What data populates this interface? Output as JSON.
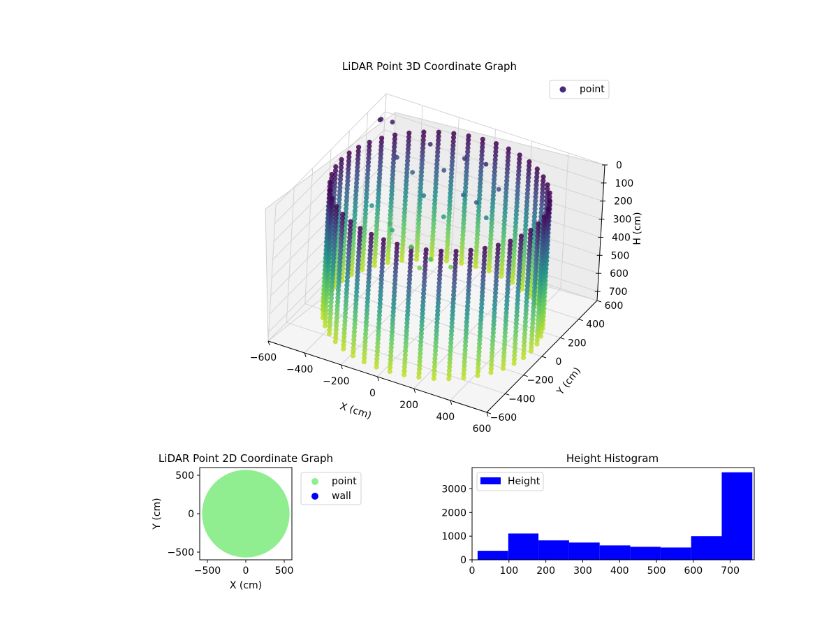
{
  "figure": {
    "bg_color": "#ffffff"
  },
  "chart_data": [
    {
      "id": "scatter3d",
      "type": "scatter",
      "projection": "3d",
      "title": "LiDAR Point 3D Coordinate Graph",
      "xlabel": "X (cm)",
      "ylabel": "Y (cm)",
      "zlabel": "H (cm)",
      "xlim": [
        -600,
        600
      ],
      "ylim": [
        -600,
        600
      ],
      "zlim": [
        0,
        750
      ],
      "z_inverted": true,
      "x_ticks": [
        -600,
        -400,
        -200,
        0,
        200,
        400,
        600
      ],
      "y_ticks": [
        -600,
        -400,
        -200,
        0,
        200,
        400,
        600
      ],
      "z_ticks": [
        0,
        100,
        200,
        300,
        400,
        500,
        600,
        700
      ],
      "colormap": "viridis",
      "series": [
        {
          "name": "point",
          "color": "#472c7a",
          "description_shape": "cylindrical wall of points",
          "wall_radius": 540,
          "wall_count": 46,
          "height_range": [
            30,
            740
          ]
        }
      ],
      "legend": {
        "labels": [
          "point"
        ],
        "position": "top-right"
      },
      "grid": true
    },
    {
      "id": "scatter2d",
      "type": "scatter",
      "title": "LiDAR Point 2D Coordinate Graph",
      "xlabel": "X (cm)",
      "ylabel": "Y (cm)",
      "xlim": [
        -600,
        600
      ],
      "ylim": [
        -600,
        600
      ],
      "x_ticks": [
        -500,
        0,
        500
      ],
      "y_ticks": [
        -500,
        0,
        500
      ],
      "series": [
        {
          "name": "point",
          "color": "#90ee90",
          "radius": 570
        },
        {
          "name": "wall",
          "color": "#0000ff"
        }
      ],
      "legend": {
        "labels": [
          "point",
          "wall"
        ],
        "position": "outside-right"
      }
    },
    {
      "id": "histogram",
      "type": "bar",
      "title": "Height Histogram",
      "xlim": [
        0,
        765
      ],
      "ylim": [
        0,
        3900
      ],
      "x_ticks": [
        0,
        100,
        200,
        300,
        400,
        500,
        600,
        700
      ],
      "y_ticks": [
        0,
        1000,
        2000,
        3000
      ],
      "bins": [
        {
          "x0": 15,
          "x1": 98,
          "count": 380
        },
        {
          "x0": 98,
          "x1": 180,
          "count": 1110
        },
        {
          "x0": 180,
          "x1": 263,
          "count": 820
        },
        {
          "x0": 263,
          "x1": 346,
          "count": 730
        },
        {
          "x0": 346,
          "x1": 429,
          "count": 610
        },
        {
          "x0": 429,
          "x1": 511,
          "count": 550
        },
        {
          "x0": 511,
          "x1": 594,
          "count": 520
        },
        {
          "x0": 594,
          "x1": 677,
          "count": 1000
        },
        {
          "x0": 677,
          "x1": 760,
          "count": 3700
        }
      ],
      "series": [
        {
          "name": "Height",
          "color": "#0000ff"
        }
      ],
      "legend": {
        "labels": [
          "Height"
        ],
        "position": "top-left"
      }
    }
  ]
}
